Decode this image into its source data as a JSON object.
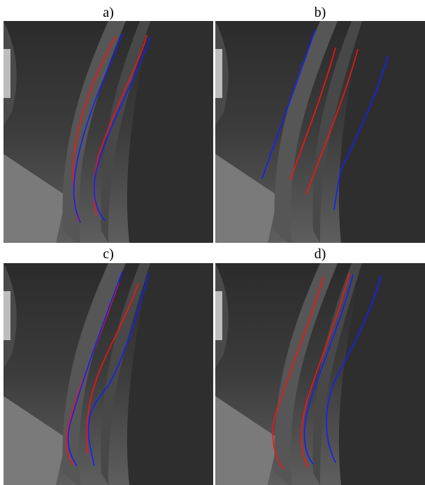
{
  "panels": [
    {
      "label": "a)"
    },
    {
      "label": "b)"
    },
    {
      "label": "c)"
    },
    {
      "label": "d)"
    }
  ],
  "colors": {
    "curve_a": "#ff1010",
    "curve_b": "#1020ff"
  }
}
